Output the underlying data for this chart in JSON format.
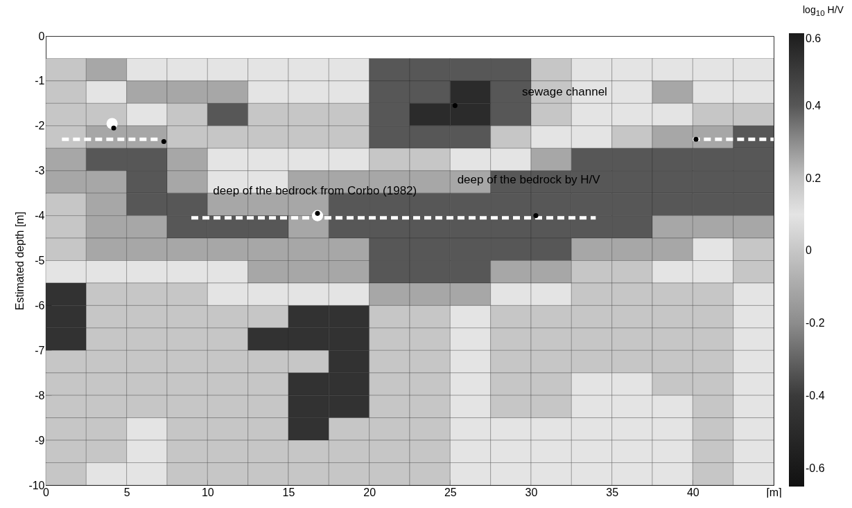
{
  "chart_data": {
    "type": "heatmap",
    "ylabel": "Estimated depth [m]",
    "clabel": "log$_{10}$ H/V",
    "x": [
      1.25,
      3.75,
      6.25,
      8.75,
      11.25,
      13.75,
      16.25,
      18.75,
      21.25,
      23.75,
      26.25,
      28.75,
      31.25,
      33.75,
      36.25,
      38.75,
      41.25,
      43.75
    ],
    "y": [
      -0.75,
      -1.25,
      -1.75,
      -2.25,
      -2.75,
      -3.25,
      -3.75,
      -4.25,
      -4.75,
      -5.25,
      -5.75,
      -6.25,
      -6.75,
      -7.25,
      -7.75,
      -8.25,
      -8.75,
      -9.25,
      -9.75
    ],
    "cells": [
      [
        0,
        0.25,
        0.1,
        0.1,
        0.1,
        0.1,
        0.1,
        0.1,
        0.4,
        0.4,
        0.4,
        0.4,
        0,
        0.1,
        0.1,
        0.1,
        0.1,
        0.1
      ],
      [
        0,
        0.1,
        0.25,
        0.25,
        0.25,
        0.1,
        0.1,
        0.1,
        0.4,
        0.4,
        0.55,
        0.4,
        0,
        0.1,
        0.1,
        0.25,
        0.1,
        0.1
      ],
      [
        0,
        0,
        0.1,
        0,
        0.4,
        0,
        0,
        0,
        0.4,
        0.55,
        0.55,
        0.4,
        0,
        0.1,
        0.1,
        0.1,
        0,
        0
      ],
      [
        0,
        0.25,
        0.25,
        0,
        0,
        0,
        0,
        0,
        0.4,
        0.4,
        0.4,
        0,
        0.1,
        0.1,
        0,
        0.25,
        0.25,
        0.4
      ],
      [
        0.25,
        0.4,
        0.4,
        0.25,
        0.1,
        0.1,
        0.1,
        0.1,
        0,
        0,
        0.1,
        0.1,
        0.25,
        0.4,
        0.4,
        0.4,
        0.4,
        0.4
      ],
      [
        0.25,
        0.25,
        0.4,
        0.25,
        0.1,
        0.1,
        0.25,
        0.25,
        0.25,
        0.25,
        0.25,
        0.4,
        0.4,
        0.4,
        0.4,
        0.4,
        0.4,
        0.4
      ],
      [
        0,
        0.25,
        0.4,
        0.4,
        0.25,
        0.25,
        0.25,
        0.4,
        0.4,
        0.4,
        0.4,
        0.4,
        0.4,
        0.4,
        0.4,
        0.4,
        0.4,
        0.4
      ],
      [
        0,
        0.25,
        0.25,
        0.4,
        0.4,
        0.4,
        0.25,
        0.4,
        0.4,
        0.4,
        0.4,
        0.4,
        0.4,
        0.4,
        0.4,
        0.25,
        0.25,
        0.25
      ],
      [
        0,
        0.25,
        0.25,
        0.25,
        0.25,
        0.25,
        0.25,
        0.25,
        0.4,
        0.4,
        0.4,
        0.4,
        0.4,
        0.25,
        0.25,
        0.25,
        0.1,
        0
      ],
      [
        0.1,
        0.1,
        0.1,
        0.1,
        0.1,
        0.25,
        0.25,
        0.25,
        0.4,
        0.4,
        0.4,
        0.25,
        0.25,
        0,
        0,
        0.1,
        0.1,
        0
      ],
      [
        -0.45,
        0,
        0,
        0,
        0.1,
        0.1,
        0.1,
        0.1,
        0.25,
        0.25,
        0.25,
        0.1,
        0.1,
        0,
        0,
        0,
        0,
        0.1
      ],
      [
        -0.45,
        0,
        0,
        0,
        0,
        0,
        -0.45,
        -0.45,
        0,
        0,
        0.1,
        0,
        0,
        0,
        0,
        0,
        0,
        0.1
      ],
      [
        -0.45,
        0,
        0,
        0,
        0,
        -0.45,
        -0.45,
        -0.45,
        0,
        0,
        0.1,
        0,
        0,
        0,
        0,
        0,
        0,
        0.1
      ],
      [
        0,
        0,
        0,
        0,
        0,
        0,
        0,
        -0.45,
        0,
        0,
        0.1,
        0,
        0,
        0,
        0,
        0,
        0,
        0.1
      ],
      [
        0,
        0,
        0,
        0,
        0,
        0,
        -0.45,
        -0.45,
        0,
        0,
        0.1,
        0,
        0,
        0.1,
        0.1,
        0,
        0,
        0.1
      ],
      [
        0,
        0,
        0,
        0,
        0,
        0,
        -0.45,
        -0.45,
        0,
        0,
        0.1,
        0,
        0,
        0.1,
        0.1,
        0.1,
        0,
        0.1
      ],
      [
        0,
        0,
        0.1,
        0,
        0,
        0,
        -0.45,
        0,
        0,
        0,
        0.1,
        0.1,
        0.1,
        0.1,
        0.1,
        0.1,
        0,
        0.1
      ],
      [
        0,
        0,
        0.1,
        0,
        0,
        0,
        0,
        0,
        0,
        0,
        0.1,
        0.1,
        0.1,
        0.1,
        0.1,
        0.1,
        0,
        0.1
      ],
      [
        0,
        0.1,
        0.1,
        0,
        0,
        0,
        0,
        0,
        0,
        0,
        0.1,
        0.1,
        0.1,
        0.1,
        0.1,
        0.1,
        0,
        0.1
      ]
    ],
    "clim": [
      -0.65,
      0.6
    ],
    "cticks": [
      -0.6,
      -0.4,
      -0.2,
      0,
      0.2,
      0.4,
      0.6
    ],
    "xlim": [
      0,
      45
    ],
    "xticks": [
      0,
      5,
      10,
      15,
      20,
      25,
      30,
      35,
      40,
      {
        "value": 45,
        "label": "[m]"
      }
    ],
    "ylim": [
      -10,
      0
    ],
    "yticks": [
      -10,
      -9,
      -8,
      -7,
      -6,
      -5,
      -4,
      -3,
      -2,
      -1,
      0
    ],
    "series": [
      {
        "type": "line",
        "color": "#ffffff",
        "line_style": "dashed",
        "x": [
          1,
          7
        ],
        "values": [
          -2.3,
          -2.3
        ]
      },
      {
        "type": "line",
        "color": "#ffffff",
        "line_style": "dashed",
        "x": [
          9,
          34
        ],
        "values": [
          -4.05,
          -4.05
        ]
      },
      {
        "type": "line",
        "color": "#ffffff",
        "line_style": "dashed",
        "x": [
          40,
          45
        ],
        "values": [
          -2.3,
          -2.3
        ]
      },
      {
        "type": "scatter",
        "color": "#ffffff",
        "marker": "circle",
        "x": [
          4.1,
          16.8
        ],
        "values": [
          -1.95,
          -4.0
        ]
      },
      {
        "type": "scatter",
        "color": "#000000",
        "marker": "circle",
        "x": [
          4.2,
          7.3,
          16.8,
          25.3,
          30.3,
          40.2
        ],
        "values": [
          -2.05,
          -2.35,
          -3.95,
          -1.55,
          -4.0,
          -2.3
        ]
      }
    ],
    "annotations": [
      "sewage channel",
      "deep of the bedrock by H/V",
      "deep of the bedrock from Corbo (1982)"
    ]
  }
}
